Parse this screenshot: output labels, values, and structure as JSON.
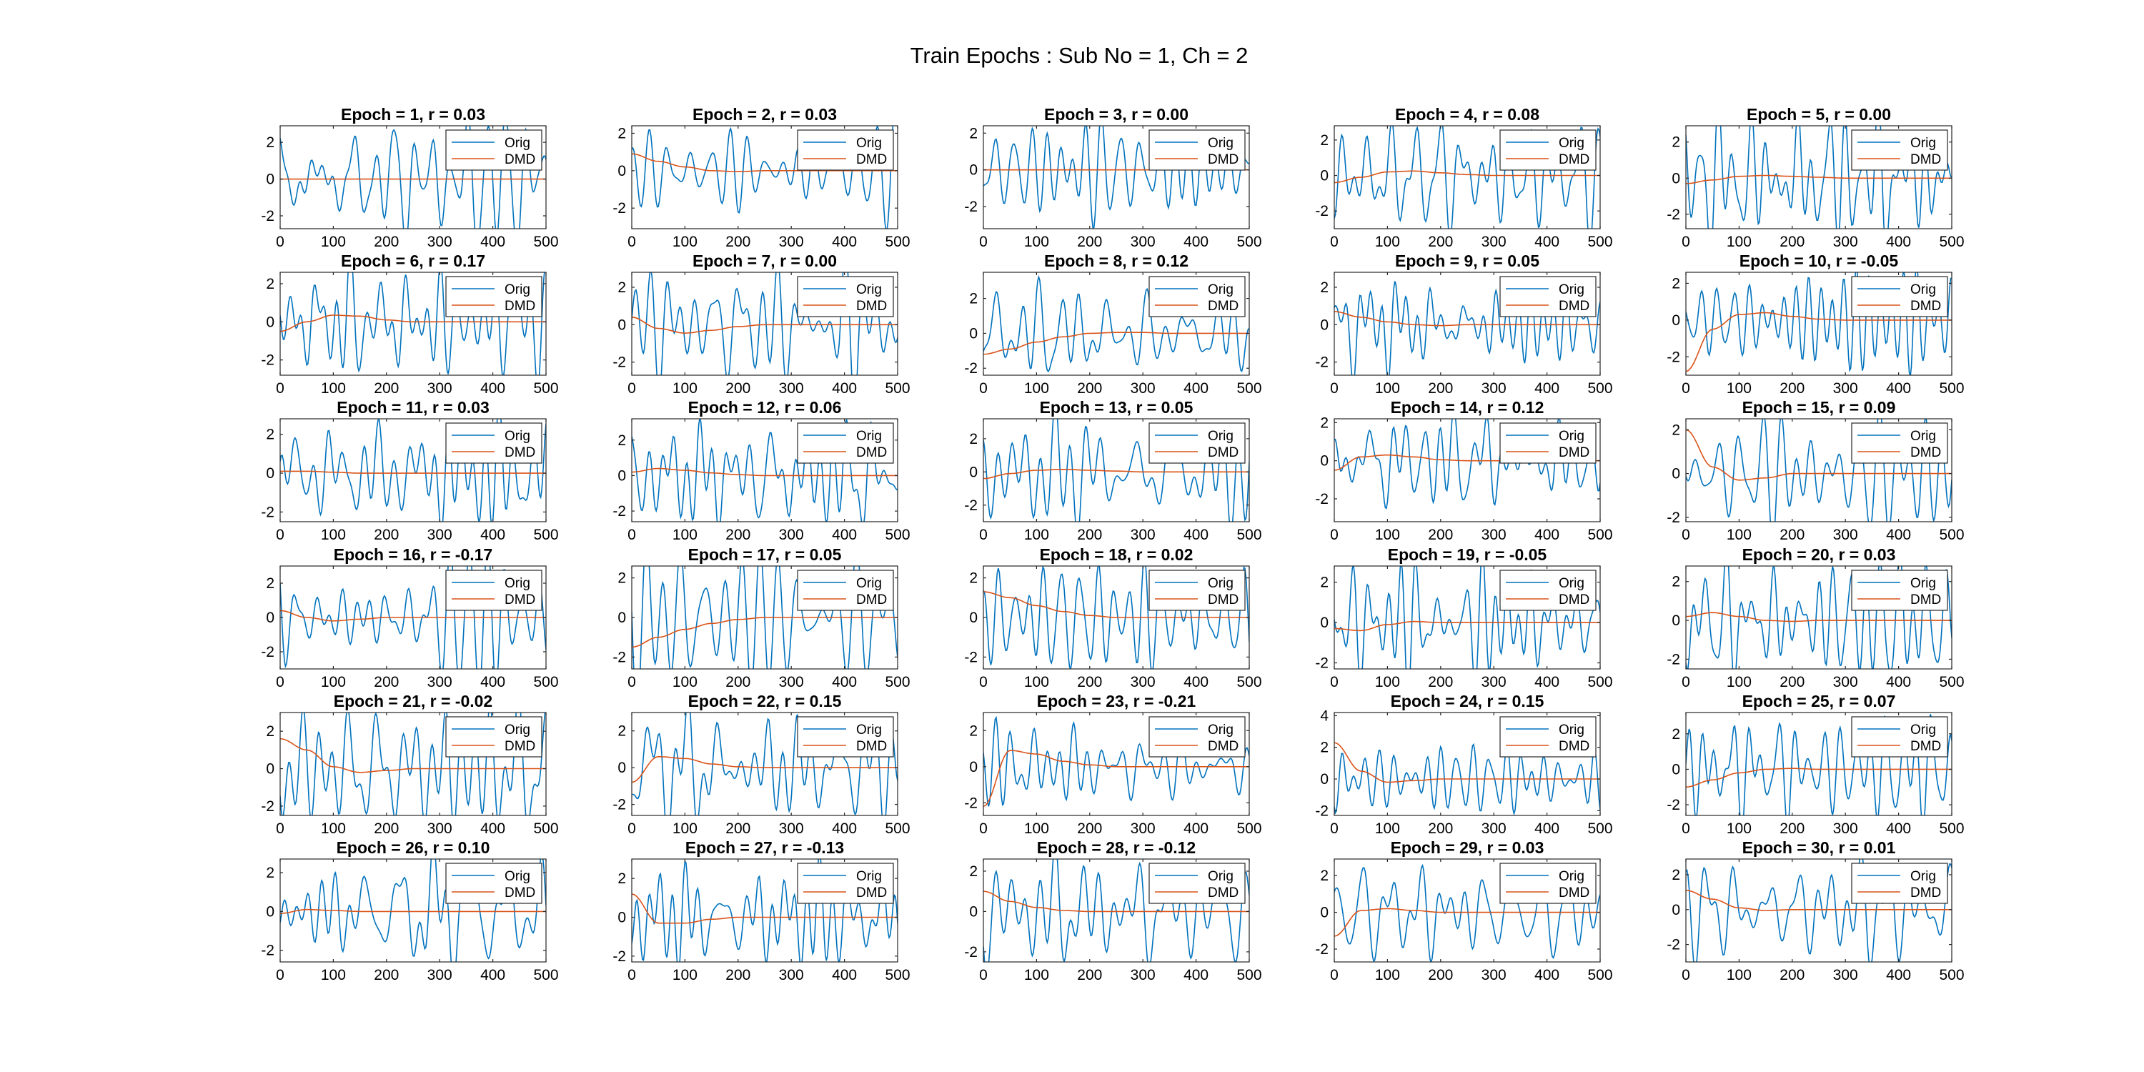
{
  "figure": {
    "title": "Train Epochs : Sub No = 1, Ch = 2",
    "background": "#ffffff"
  },
  "legend": {
    "entries": [
      "Orig",
      "DMD"
    ],
    "location": "northeast"
  },
  "colors": {
    "orig": "#0072BD",
    "dmd": "#D95319"
  },
  "chart_data": {
    "type": "line",
    "layout": "6x5 grid of subplots",
    "xlim": [
      0,
      500
    ],
    "xticks": [
      0,
      100,
      200,
      300,
      400,
      500
    ],
    "grid": false,
    "series_names": [
      "Orig",
      "DMD"
    ],
    "subplots": [
      {
        "epoch": 1,
        "r": "0.03",
        "title": "Epoch = 1, r = 0.03",
        "ylim": [
          -2.7,
          2.9
        ],
        "yticks": [
          -2,
          0,
          2
        ],
        "dmd": [
          0,
          0,
          0,
          0,
          0,
          0,
          0,
          0,
          0,
          0,
          0
        ]
      },
      {
        "epoch": 2,
        "r": "0.03",
        "title": "Epoch = 2, r = 0.03",
        "ylim": [
          -3.1,
          2.4
        ],
        "yticks": [
          -2,
          0,
          2
        ],
        "dmd": [
          0.9,
          0.5,
          0.2,
          0,
          -0.05,
          0,
          0,
          0,
          0,
          0,
          0
        ]
      },
      {
        "epoch": 3,
        "r": "0.00",
        "title": "Epoch = 3, r = 0.00",
        "ylim": [
          -3.2,
          2.4
        ],
        "yticks": [
          -2,
          0,
          2
        ],
        "dmd": [
          0,
          0,
          0,
          0,
          0,
          0,
          0,
          0,
          0,
          0,
          0
        ]
      },
      {
        "epoch": 4,
        "r": "0.08",
        "title": "Epoch = 4, r = 0.08",
        "ylim": [
          -3.0,
          2.8
        ],
        "yticks": [
          -2,
          0,
          2
        ],
        "dmd": [
          -0.4,
          -0.1,
          0.2,
          0.25,
          0.15,
          0.05,
          0,
          0,
          0,
          0,
          0
        ]
      },
      {
        "epoch": 5,
        "r": "0.00",
        "title": "Epoch = 5, r = 0.00",
        "ylim": [
          -2.8,
          2.9
        ],
        "yticks": [
          -2,
          0,
          2
        ],
        "dmd": [
          -0.3,
          -0.1,
          0.1,
          0.15,
          0.1,
          0.05,
          0,
          0,
          0,
          0,
          0
        ]
      },
      {
        "epoch": 6,
        "r": "0.17",
        "title": "Epoch = 6, r = 0.17",
        "ylim": [
          -2.8,
          2.6
        ],
        "yticks": [
          -2,
          0,
          2
        ],
        "dmd": [
          -0.5,
          0,
          0.35,
          0.3,
          0.1,
          0,
          0,
          0,
          0,
          0,
          0
        ]
      },
      {
        "epoch": 7,
        "r": "0.00",
        "title": "Epoch = 7, r = 0.00",
        "ylim": [
          -2.7,
          2.8
        ],
        "yticks": [
          -2,
          0,
          2
        ],
        "dmd": [
          0.4,
          -0.2,
          -0.45,
          -0.3,
          -0.1,
          0,
          0,
          0,
          0,
          0,
          0
        ]
      },
      {
        "epoch": 8,
        "r": "0.12",
        "title": "Epoch = 8, r = 0.12",
        "ylim": [
          -2.4,
          3.5
        ],
        "yticks": [
          -2,
          0,
          2
        ],
        "dmd": [
          -1.2,
          -0.9,
          -0.5,
          -0.2,
          0,
          0.05,
          0.05,
          0,
          0,
          0,
          0
        ]
      },
      {
        "epoch": 9,
        "r": "0.05",
        "title": "Epoch = 9, r = 0.05",
        "ylim": [
          -2.7,
          2.8
        ],
        "yticks": [
          -2,
          0,
          2
        ],
        "dmd": [
          0.7,
          0.4,
          0.15,
          0,
          -0.05,
          0,
          0,
          0,
          0,
          0,
          0
        ]
      },
      {
        "epoch": 10,
        "r": "-0.05",
        "title": "Epoch = 10, r = -0.05",
        "ylim": [
          -3.0,
          2.6
        ],
        "yticks": [
          -2,
          0,
          2
        ],
        "dmd": [
          -2.8,
          -0.5,
          0.3,
          0.4,
          0.2,
          0.05,
          0,
          0,
          0,
          0,
          0
        ]
      },
      {
        "epoch": 11,
        "r": "0.03",
        "title": "Epoch = 11, r = 0.03",
        "ylim": [
          -2.5,
          2.8
        ],
        "yticks": [
          -2,
          0,
          2
        ],
        "dmd": [
          0.1,
          0.1,
          0.05,
          0,
          0,
          0,
          0,
          0,
          0,
          0,
          0
        ]
      },
      {
        "epoch": 12,
        "r": "0.06",
        "title": "Epoch = 12, r = 0.06",
        "ylim": [
          -2.6,
          3.2
        ],
        "yticks": [
          -2,
          0,
          2
        ],
        "dmd": [
          0.2,
          0.4,
          0.3,
          0.15,
          0.05,
          0,
          0,
          0,
          0,
          0,
          0
        ]
      },
      {
        "epoch": 13,
        "r": "0.05",
        "title": "Epoch = 13, r = 0.05",
        "ylim": [
          -3.0,
          3.2
        ],
        "yticks": [
          -2,
          0,
          2
        ],
        "dmd": [
          -0.4,
          -0.1,
          0.1,
          0.15,
          0.1,
          0.05,
          0,
          0,
          0,
          0,
          0
        ]
      },
      {
        "epoch": 14,
        "r": "0.12",
        "title": "Epoch = 14, r = 0.12",
        "ylim": [
          -3.2,
          2.2
        ],
        "yticks": [
          -2,
          0,
          2
        ],
        "dmd": [
          -0.5,
          0.2,
          0.3,
          0.2,
          0.05,
          0,
          0,
          0,
          0,
          0,
          0
        ]
      },
      {
        "epoch": 15,
        "r": "0.09",
        "title": "Epoch = 15, r = 0.09",
        "ylim": [
          -2.2,
          2.5
        ],
        "yticks": [
          -2,
          0,
          2
        ],
        "dmd": [
          2.0,
          0.3,
          -0.3,
          -0.2,
          0,
          0,
          0,
          0,
          0,
          0,
          0
        ]
      },
      {
        "epoch": 16,
        "r": "-0.17",
        "title": "Epoch = 16, r = -0.17",
        "ylim": [
          -3.0,
          3.0
        ],
        "yticks": [
          -2,
          0,
          2
        ],
        "dmd": [
          0.4,
          0,
          -0.2,
          -0.1,
          0,
          0,
          0,
          0,
          0,
          0,
          0
        ]
      },
      {
        "epoch": 17,
        "r": "0.05",
        "title": "Epoch = 17, r = 0.05",
        "ylim": [
          -2.6,
          2.6
        ],
        "yticks": [
          -2,
          0,
          2
        ],
        "dmd": [
          -1.5,
          -1.0,
          -0.6,
          -0.3,
          -0.1,
          0,
          0,
          0,
          0,
          0,
          0
        ]
      },
      {
        "epoch": 18,
        "r": "0.02",
        "title": "Epoch = 18, r = 0.02",
        "ylim": [
          -2.6,
          2.6
        ],
        "yticks": [
          -2,
          0,
          2
        ],
        "dmd": [
          1.3,
          1.0,
          0.6,
          0.3,
          0.1,
          0,
          0,
          0,
          0,
          0,
          0
        ]
      },
      {
        "epoch": 19,
        "r": "-0.05",
        "title": "Epoch = 19, r = -0.05",
        "ylim": [
          -2.3,
          2.8
        ],
        "yticks": [
          -2,
          0,
          2
        ],
        "dmd": [
          -0.3,
          -0.4,
          -0.1,
          0.05,
          0,
          0,
          0,
          0,
          0,
          0,
          0
        ]
      },
      {
        "epoch": 20,
        "r": "0.03",
        "title": "Epoch = 20, r = 0.03",
        "ylim": [
          -2.5,
          2.8
        ],
        "yticks": [
          -2,
          0,
          2
        ],
        "dmd": [
          0.2,
          0.4,
          0.2,
          0,
          -0.05,
          0,
          0,
          0,
          0,
          0,
          0
        ]
      },
      {
        "epoch": 21,
        "r": "-0.02",
        "title": "Epoch = 21, r = -0.02",
        "ylim": [
          -2.5,
          3.0
        ],
        "yticks": [
          -2,
          0,
          2
        ],
        "dmd": [
          1.6,
          1.0,
          0.1,
          -0.2,
          -0.1,
          0,
          0,
          0,
          0,
          0,
          0
        ]
      },
      {
        "epoch": 22,
        "r": "0.15",
        "title": "Epoch = 22, r = 0.15",
        "ylim": [
          -2.6,
          3.0
        ],
        "yticks": [
          -2,
          0,
          2
        ],
        "dmd": [
          -0.8,
          0.6,
          0.5,
          0.2,
          0.05,
          0,
          0,
          0,
          0,
          0,
          0
        ]
      },
      {
        "epoch": 23,
        "r": "-0.21",
        "title": "Epoch = 23, r = -0.21",
        "ylim": [
          -2.7,
          3.0
        ],
        "yticks": [
          -2,
          0,
          2
        ],
        "dmd": [
          -2.2,
          0.9,
          0.7,
          0.3,
          0.1,
          0,
          0,
          0,
          0,
          0,
          0
        ]
      },
      {
        "epoch": 24,
        "r": "0.15",
        "title": "Epoch = 24, r = 0.15",
        "ylim": [
          -2.3,
          4.2
        ],
        "yticks": [
          -2,
          0,
          2,
          4
        ],
        "dmd": [
          2.3,
          0.5,
          -0.2,
          -0.1,
          0,
          0,
          0,
          0,
          0,
          0,
          0
        ]
      },
      {
        "epoch": 25,
        "r": "0.07",
        "title": "Epoch = 25, r = 0.07",
        "ylim": [
          -2.6,
          3.2
        ],
        "yticks": [
          -2,
          0,
          2
        ],
        "dmd": [
          -1.0,
          -0.6,
          -0.2,
          0,
          0.05,
          0,
          0,
          0,
          0,
          0,
          0
        ]
      },
      {
        "epoch": 26,
        "r": "0.10",
        "title": "Epoch = 26, r = 0.10",
        "ylim": [
          -2.6,
          2.7
        ],
        "yticks": [
          -2,
          0,
          2
        ],
        "dmd": [
          -0.1,
          0.1,
          0.05,
          0,
          0,
          0,
          0,
          0,
          0,
          0,
          0
        ]
      },
      {
        "epoch": 27,
        "r": "-0.13",
        "title": "Epoch = 27, r = -0.13",
        "ylim": [
          -2.3,
          3.0
        ],
        "yticks": [
          -2,
          0,
          2
        ],
        "dmd": [
          1.2,
          -0.3,
          -0.3,
          -0.1,
          0,
          0,
          0,
          0,
          0,
          0,
          0
        ]
      },
      {
        "epoch": 28,
        "r": "-0.12",
        "title": "Epoch = 28, r = -0.12",
        "ylim": [
          -2.5,
          2.6
        ],
        "yticks": [
          -2,
          0,
          2
        ],
        "dmd": [
          1.0,
          0.5,
          0.2,
          0.05,
          0,
          0,
          0,
          0,
          0,
          0,
          0
        ]
      },
      {
        "epoch": 29,
        "r": "0.03",
        "title": "Epoch = 29, r = 0.03",
        "ylim": [
          -2.7,
          2.9
        ],
        "yticks": [
          -2,
          0,
          2
        ],
        "dmd": [
          -1.3,
          0.1,
          0.2,
          0.1,
          0,
          0,
          0,
          0,
          0,
          0,
          0
        ]
      },
      {
        "epoch": 30,
        "r": "0.01",
        "title": "Epoch = 30, r = 0.01",
        "ylim": [
          -3.0,
          2.9
        ],
        "yticks": [
          -2,
          0,
          2
        ],
        "dmd": [
          1.1,
          0.6,
          0.1,
          -0.05,
          0,
          0,
          0,
          0,
          0,
          0,
          0
        ]
      }
    ]
  }
}
